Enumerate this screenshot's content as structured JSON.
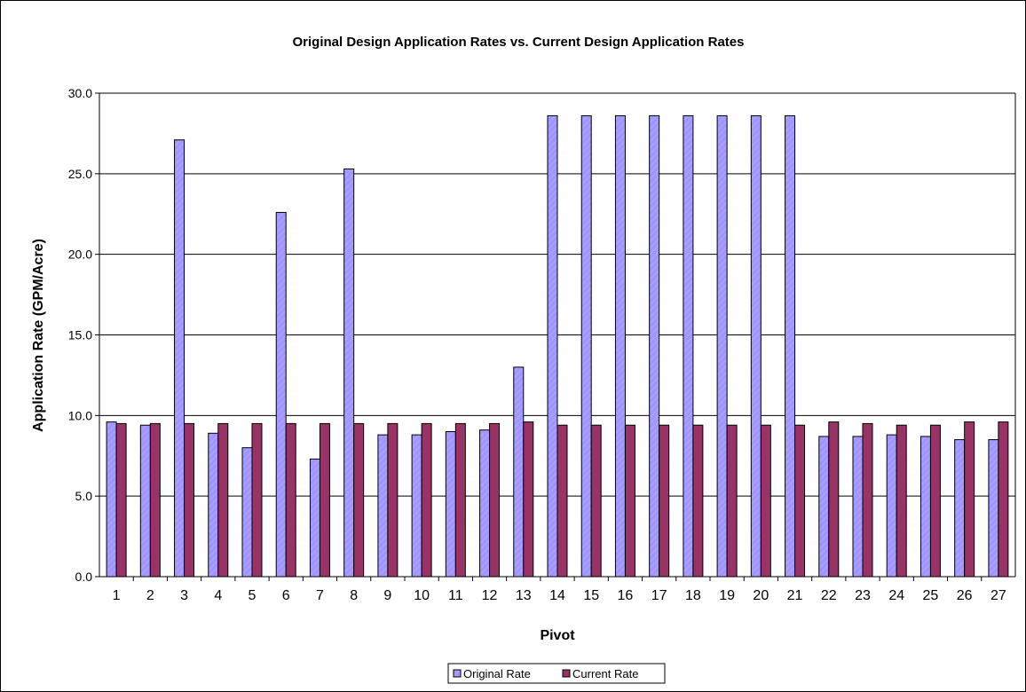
{
  "colors": {
    "original": "#9999ff",
    "original_hatch": "#cc99ff",
    "current": "#993366",
    "grid": "#000000",
    "plot_bg": "#ffffff"
  },
  "chart_data": {
    "type": "bar",
    "title": "Original Design Application Rates vs. Current Design Application Rates",
    "xlabel": "Pivot",
    "ylabel": "Application Rate (GPM/Acre)",
    "ylim": [
      0,
      30
    ],
    "yticks": [
      "0.0",
      "5.0",
      "10.0",
      "15.0",
      "20.0",
      "25.0",
      "30.0"
    ],
    "grid": true,
    "legend_position": "bottom",
    "categories": [
      "1",
      "2",
      "3",
      "4",
      "5",
      "6",
      "7",
      "8",
      "9",
      "10",
      "11",
      "12",
      "13",
      "14",
      "15",
      "16",
      "17",
      "18",
      "19",
      "20",
      "21",
      "22",
      "23",
      "24",
      "25",
      "26",
      "27"
    ],
    "series": [
      {
        "name": "Original Rate",
        "values": [
          9.6,
          9.4,
          27.1,
          8.9,
          8.0,
          22.6,
          7.3,
          25.3,
          8.8,
          8.8,
          9.0,
          9.1,
          13.0,
          28.6,
          28.6,
          28.6,
          28.6,
          28.6,
          28.6,
          28.6,
          28.6,
          8.7,
          8.7,
          8.8,
          8.7,
          8.5,
          8.5
        ]
      },
      {
        "name": "Current Rate",
        "values": [
          9.5,
          9.5,
          9.5,
          9.5,
          9.5,
          9.5,
          9.5,
          9.5,
          9.5,
          9.5,
          9.5,
          9.5,
          9.6,
          9.4,
          9.4,
          9.4,
          9.4,
          9.4,
          9.4,
          9.4,
          9.4,
          9.6,
          9.5,
          9.4,
          9.4,
          9.6,
          9.6
        ]
      }
    ]
  }
}
